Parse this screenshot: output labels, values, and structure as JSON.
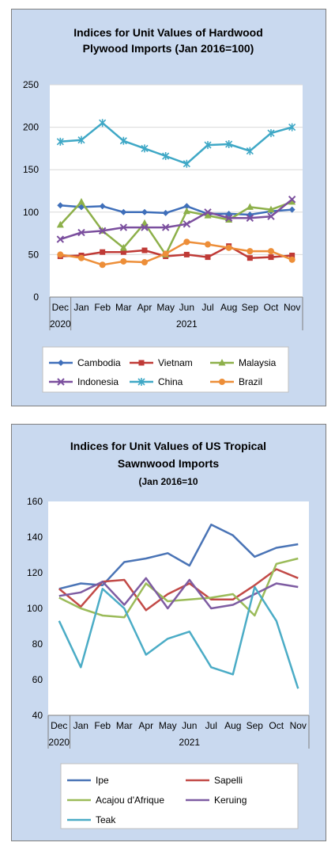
{
  "colors": {
    "panel_bg": "#c9d9ef",
    "plot_bg": "#ffffff",
    "gridline": "#d9d9d9"
  },
  "chart_data": [
    {
      "type": "line",
      "title_line1": "Indices for Unit Values of Hardwood",
      "title_line2": "Plywood Imports (Jan 2016=100)",
      "categories": [
        "Dec",
        "Jan",
        "Feb",
        "Mar",
        "Apr",
        "May",
        "Jun",
        "Jul",
        "Aug",
        "Sep",
        "Oct",
        "Nov"
      ],
      "year_labels": [
        "2020",
        "2021"
      ],
      "ylim": [
        0,
        250
      ],
      "yticks": [
        0,
        50,
        100,
        150,
        200,
        250
      ],
      "grid": true,
      "legend_position": "bottom",
      "series": [
        {
          "name": "Cambodia",
          "color": "#3f6fba",
          "marker": "diamond",
          "values": [
            108,
            106,
            107,
            100,
            100,
            99,
            107,
            98,
            98,
            97,
            101,
            103
          ]
        },
        {
          "name": "Vietnam",
          "color": "#bf3a36",
          "marker": "square",
          "values": [
            48,
            49,
            53,
            53,
            55,
            48,
            50,
            47,
            60,
            46,
            47,
            49
          ]
        },
        {
          "name": "Malaysia",
          "color": "#8db04a",
          "marker": "triangle",
          "values": [
            85,
            112,
            78,
            58,
            87,
            50,
            101,
            96,
            91,
            106,
            103,
            112
          ]
        },
        {
          "name": "Indonesia",
          "color": "#7b4f9e",
          "marker": "x",
          "values": [
            68,
            76,
            78,
            82,
            82,
            82,
            86,
            100,
            93,
            93,
            95,
            115
          ]
        },
        {
          "name": "China",
          "color": "#3fa8c6",
          "marker": "star",
          "values": [
            183,
            185,
            205,
            184,
            175,
            166,
            157,
            179,
            180,
            172,
            193,
            200
          ]
        },
        {
          "name": "Brazil",
          "color": "#ed8e38",
          "marker": "circle",
          "values": [
            50,
            46,
            38,
            42,
            41,
            51,
            65,
            62,
            58,
            54,
            54,
            44
          ]
        }
      ]
    },
    {
      "type": "line",
      "title_line1": "Indices for Unit Values of US Tropical",
      "title_line2": "Sawnwood Imports",
      "subtitle": "(Jan 2016=10",
      "categories": [
        "Dec",
        "Jan",
        "Feb",
        "Mar",
        "Apr",
        "May",
        "Jun",
        "Jul",
        "Aug",
        "Sep",
        "Oct",
        "Nov"
      ],
      "year_labels": [
        "2020",
        "2021"
      ],
      "ylim": [
        40,
        160
      ],
      "yticks": [
        40,
        60,
        80,
        100,
        120,
        140,
        160
      ],
      "grid": false,
      "legend_position": "bottom",
      "series": [
        {
          "name": "Ipe",
          "color": "#4a74b6",
          "values": [
            111,
            114,
            113,
            126,
            128,
            131,
            124,
            147,
            141,
            129,
            134,
            136
          ]
        },
        {
          "name": "Sapelli",
          "color": "#c24a47",
          "values": [
            111,
            101,
            115,
            116,
            99,
            108,
            114,
            105,
            105,
            113,
            122,
            117
          ]
        },
        {
          "name": "Acajou d'Afrique",
          "color": "#9bbb59",
          "values": [
            106,
            100,
            96,
            95,
            114,
            104,
            105,
            106,
            108,
            96,
            125,
            128
          ]
        },
        {
          "name": "Keruing",
          "color": "#7e5ca2",
          "values": [
            107,
            109,
            115,
            102,
            117,
            100,
            116,
            100,
            102,
            108,
            114,
            112
          ]
        },
        {
          "name": "Teak",
          "color": "#4bacc6",
          "values": [
            93,
            67,
            111,
            100,
            74,
            83,
            87,
            67,
            63,
            112,
            93,
            55
          ]
        }
      ]
    }
  ]
}
